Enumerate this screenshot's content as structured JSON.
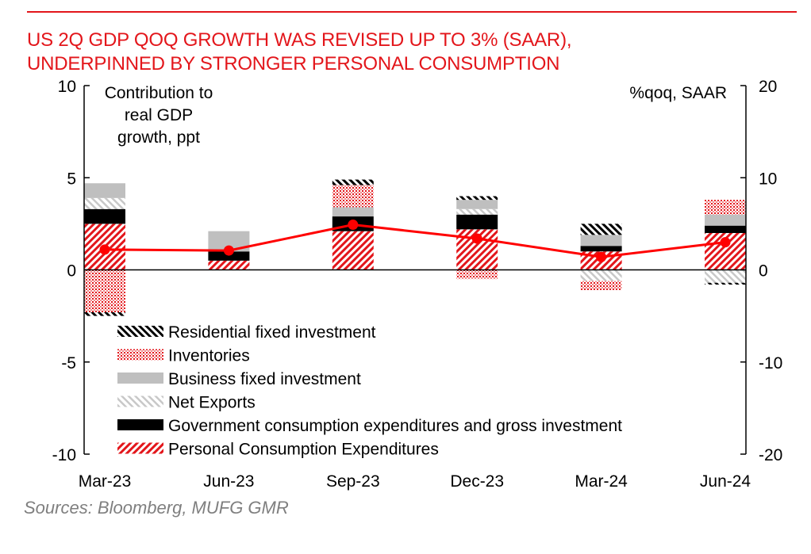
{
  "title": {
    "line1": "US 2Q GDP QOQ GROWTH WAS REVISED UP TO 3% (SAAR),",
    "line2": "UNDERPINNED BY STRONGER PERSONAL CONSUMPTION"
  },
  "source": "Sources:  Bloomberg, MUFG GMR",
  "colors": {
    "accent": "#e3161b",
    "black": "#000000",
    "grey": "#bfbfbf",
    "light_grey": "#d9d9d9"
  },
  "chart_data": {
    "type": "bar",
    "subtype": "stacked bar with line overlay",
    "categories": [
      "Mar-23",
      "Jun-23",
      "Sep-23",
      "Dec-23",
      "Mar-24",
      "Jun-24"
    ],
    "left_axis_label": [
      "Contribution to",
      "real GDP",
      "growth, ppt"
    ],
    "right_axis_label": "%qoq, SAAR",
    "ylim": [
      -10,
      10
    ],
    "yticks": [
      10,
      5,
      0,
      -5,
      -10
    ],
    "y2lim": [
      -20,
      20
    ],
    "y2ticks": [
      20,
      10,
      0,
      -10,
      -20
    ],
    "grid": false,
    "legend_position": "lower-left",
    "series": [
      {
        "name": "Personal Consumption Expenditures",
        "key": "pce",
        "pattern": "hatch-red",
        "values": [
          2.5,
          0.5,
          2.1,
          2.2,
          1.0,
          2.0
        ]
      },
      {
        "name": "Government consumption expenditures and gross investment",
        "key": "gov",
        "pattern": "solid-black",
        "values": [
          0.8,
          0.5,
          0.8,
          0.8,
          0.3,
          0.4
        ]
      },
      {
        "name": "Net Exports",
        "key": "nx",
        "pattern": "hatch-grey",
        "values": [
          0.6,
          0.0,
          0.0,
          0.3,
          -0.6,
          -0.7
        ]
      },
      {
        "name": "Business fixed investment",
        "key": "bfi",
        "pattern": "solid-grey",
        "values": [
          0.8,
          1.1,
          0.5,
          0.5,
          0.6,
          0.6
        ]
      },
      {
        "name": "Inventories",
        "key": "inv",
        "pattern": "dots-red",
        "values": [
          -2.3,
          0.0,
          1.2,
          -0.5,
          -0.5,
          0.8
        ]
      },
      {
        "name": "Residential fixed investment",
        "key": "res",
        "pattern": "hatch-black",
        "values": [
          -0.2,
          0.0,
          0.3,
          0.2,
          0.6,
          -0.1
        ]
      }
    ],
    "line": {
      "name": "Real GDP growth (%qoq, SAAR)",
      "axis": "right",
      "values": [
        2.2,
        2.1,
        4.9,
        3.4,
        1.4,
        3.0
      ]
    },
    "legend_order": [
      "Residential fixed investment",
      "Inventories",
      "Business fixed investment",
      "Net Exports",
      "Government consumption expenditures and gross investment",
      "Personal Consumption Expenditures"
    ]
  }
}
